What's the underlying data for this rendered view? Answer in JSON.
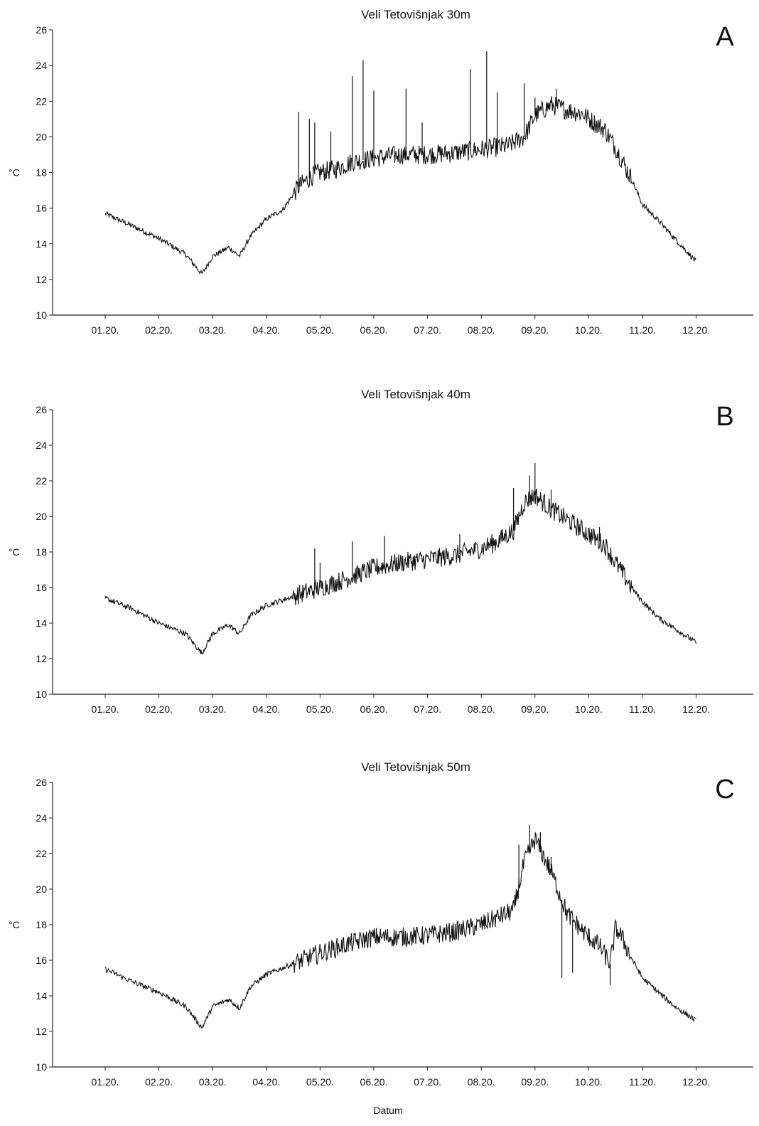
{
  "figure": {
    "xlabel": "Datum"
  },
  "chart_data": [
    {
      "type": "line",
      "panel": "A",
      "title": "Veli Tetovišnjak 30m",
      "ylabel": "°C",
      "xlabel": "",
      "ylim": [
        10,
        26
      ],
      "yticks": [
        10,
        12,
        14,
        16,
        18,
        20,
        22,
        24,
        26
      ],
      "xticks": [
        "01.20.",
        "02.20.",
        "03.20.",
        "04.20.",
        "05.20.",
        "06.20.",
        "07.20.",
        "08.20.",
        "09.20.",
        "10.20.",
        "11.20.",
        "12.20."
      ],
      "x": [
        0.0,
        0.5,
        1.0,
        1.5,
        1.8,
        2.0,
        2.3,
        2.5,
        2.7,
        3.0,
        3.3,
        3.6,
        3.9,
        4.0,
        4.3,
        4.6,
        5.0,
        5.5,
        6.0,
        6.5,
        7.0,
        7.5,
        7.8,
        8.0,
        8.3,
        8.6,
        8.9,
        9.0,
        9.3,
        9.5,
        9.8,
        10.0,
        10.3,
        10.6,
        11.0
      ],
      "y": [
        15.7,
        15.0,
        14.3,
        13.4,
        12.3,
        13.3,
        13.8,
        13.3,
        14.4,
        15.4,
        15.9,
        17.2,
        17.9,
        18.0,
        18.2,
        18.6,
        18.8,
        19.0,
        19.0,
        19.1,
        19.3,
        19.5,
        20.0,
        21.2,
        21.8,
        21.5,
        21.3,
        21.0,
        20.4,
        19.4,
        17.6,
        16.2,
        15.3,
        14.3,
        13.0
      ],
      "spikes": [
        [
          3.6,
          21.4
        ],
        [
          3.8,
          21.0
        ],
        [
          3.9,
          20.8
        ],
        [
          4.2,
          20.3
        ],
        [
          4.6,
          23.4
        ],
        [
          4.8,
          24.3
        ],
        [
          5.0,
          22.6
        ],
        [
          5.6,
          22.7
        ],
        [
          5.9,
          20.8
        ],
        [
          6.8,
          23.8
        ],
        [
          7.1,
          24.8
        ],
        [
          7.3,
          22.5
        ],
        [
          7.8,
          23.0
        ],
        [
          8.0,
          22.2
        ],
        [
          8.4,
          22.7
        ]
      ]
    },
    {
      "type": "line",
      "panel": "B",
      "title": "Veli Tetovišnjak 40m",
      "ylabel": "°C",
      "xlabel": "",
      "ylim": [
        10,
        26
      ],
      "yticks": [
        10,
        12,
        14,
        16,
        18,
        20,
        22,
        24,
        26
      ],
      "xticks": [
        "01.20.",
        "02.20.",
        "03.20.",
        "04.20.",
        "05.20.",
        "06.20.",
        "07.20.",
        "08.20.",
        "09.20.",
        "10.20.",
        "11.20.",
        "12.20."
      ],
      "x": [
        0.0,
        0.5,
        1.0,
        1.5,
        1.8,
        2.0,
        2.3,
        2.5,
        2.7,
        3.0,
        3.5,
        4.0,
        4.5,
        5.0,
        5.5,
        6.0,
        6.5,
        7.0,
        7.3,
        7.6,
        7.8,
        8.0,
        8.3,
        8.6,
        9.0,
        9.3,
        9.5,
        9.8,
        10.0,
        10.3,
        10.6,
        11.0
      ],
      "y": [
        15.4,
        14.8,
        14.0,
        13.4,
        12.3,
        13.4,
        13.9,
        13.4,
        14.4,
        15.0,
        15.5,
        16.0,
        16.5,
        17.1,
        17.4,
        17.6,
        17.8,
        18.2,
        18.6,
        19.2,
        20.8,
        21.2,
        20.4,
        19.8,
        19.0,
        18.4,
        17.4,
        16.0,
        15.2,
        14.3,
        13.7,
        12.9
      ],
      "spikes": [
        [
          3.9,
          18.2
        ],
        [
          4.0,
          17.4
        ],
        [
          4.6,
          18.6
        ],
        [
          5.2,
          18.9
        ],
        [
          6.6,
          19.0
        ],
        [
          7.6,
          21.6
        ],
        [
          7.9,
          22.3
        ],
        [
          8.0,
          23.0
        ],
        [
          8.3,
          21.5
        ],
        [
          9.2,
          19.4
        ]
      ]
    },
    {
      "type": "line",
      "panel": "C",
      "title": "Veli Tetovišnjak 50m",
      "ylabel": "°C",
      "xlabel": "Datum",
      "ylim": [
        10,
        26
      ],
      "yticks": [
        10,
        12,
        14,
        16,
        18,
        20,
        22,
        24,
        26
      ],
      "xticks": [
        "01.20.",
        "02.20.",
        "03.20.",
        "04.20.",
        "05.20.",
        "06.20.",
        "07.20.",
        "08.20.",
        "09.20.",
        "10.20.",
        "11.20.",
        "12.20."
      ],
      "x": [
        0.0,
        0.5,
        1.0,
        1.5,
        1.8,
        2.0,
        2.3,
        2.5,
        2.7,
        3.0,
        3.5,
        4.0,
        4.5,
        5.0,
        5.5,
        6.0,
        6.5,
        7.0,
        7.3,
        7.6,
        7.8,
        8.0,
        8.3,
        8.6,
        8.9,
        9.2,
        9.4,
        9.5,
        9.6,
        9.8,
        10.0,
        10.3,
        10.6,
        11.0
      ],
      "y": [
        15.5,
        14.8,
        14.2,
        13.4,
        12.2,
        13.4,
        13.8,
        13.3,
        14.5,
        15.2,
        15.8,
        16.4,
        16.9,
        17.3,
        17.3,
        17.4,
        17.6,
        18.0,
        18.4,
        18.8,
        21.5,
        22.8,
        21.0,
        18.6,
        17.6,
        16.8,
        15.8,
        17.8,
        17.4,
        16.1,
        15.0,
        14.2,
        13.4,
        12.6
      ],
      "spikes": [
        [
          7.7,
          22.5
        ],
        [
          7.9,
          23.6
        ],
        [
          8.1,
          23.2
        ],
        [
          8.3,
          21.8
        ],
        [
          8.5,
          15.0
        ],
        [
          8.7,
          15.3
        ],
        [
          9.0,
          17.0
        ],
        [
          9.4,
          14.6
        ]
      ]
    }
  ]
}
